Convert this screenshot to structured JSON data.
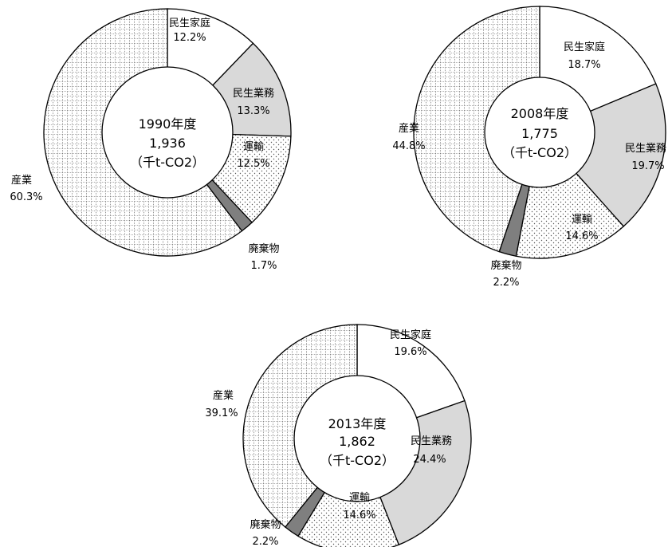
{
  "colors": {
    "minsei_katei": "#ffffff",
    "minsei_gyomu": "#d9d9d9",
    "unyu": "dotted",
    "haikibutsu": "#7f7f7f",
    "sangyo": "grid",
    "outline": "#000000"
  },
  "chart_data": [
    {
      "type": "pie",
      "center": {
        "year_label": "1990年度",
        "total": "1,936",
        "unit": "（千t-CO2）"
      },
      "slices": [
        {
          "name": "民生家庭",
          "pct_label": "12.2%",
          "value": 12.2,
          "fill": "white"
        },
        {
          "name": "民生業務",
          "pct_label": "13.3%",
          "value": 13.3,
          "fill": "gray"
        },
        {
          "name": "運輸",
          "pct_label": "12.5%",
          "value": 12.5,
          "fill": "dots"
        },
        {
          "name": "廃棄物",
          "pct_label": "1.7%",
          "value": 1.7,
          "fill": "dark"
        },
        {
          "name": "産業",
          "pct_label": "60.3%",
          "value": 60.3,
          "fill": "grid"
        }
      ]
    },
    {
      "type": "pie",
      "center": {
        "year_label": "2008年度",
        "total": "1,775",
        "unit": "（千t-CO2）"
      },
      "slices": [
        {
          "name": "民生家庭",
          "pct_label": "18.7%",
          "value": 18.7,
          "fill": "white"
        },
        {
          "name": "民生業務",
          "pct_label": "19.7%",
          "value": 19.7,
          "fill": "gray"
        },
        {
          "name": "運輸",
          "pct_label": "14.6%",
          "value": 14.6,
          "fill": "dots"
        },
        {
          "name": "廃棄物",
          "pct_label": "2.2%",
          "value": 2.2,
          "fill": "dark"
        },
        {
          "name": "産業",
          "pct_label": "44.8%",
          "value": 44.8,
          "fill": "grid"
        }
      ]
    },
    {
      "type": "pie",
      "center": {
        "year_label": "2013年度",
        "total": "1,862",
        "unit": "（千t-CO2）"
      },
      "slices": [
        {
          "name": "民生家庭",
          "pct_label": "19.6%",
          "value": 19.6,
          "fill": "white"
        },
        {
          "name": "民生業務",
          "pct_label": "24.4%",
          "value": 24.4,
          "fill": "gray"
        },
        {
          "name": "運輸",
          "pct_label": "14.6%",
          "value": 14.6,
          "fill": "dots"
        },
        {
          "name": "廃棄物",
          "pct_label": "2.2%",
          "value": 2.2,
          "fill": "dark"
        },
        {
          "name": "産業",
          "pct_label": "39.1%",
          "value": 39.1,
          "fill": "grid"
        }
      ]
    }
  ]
}
